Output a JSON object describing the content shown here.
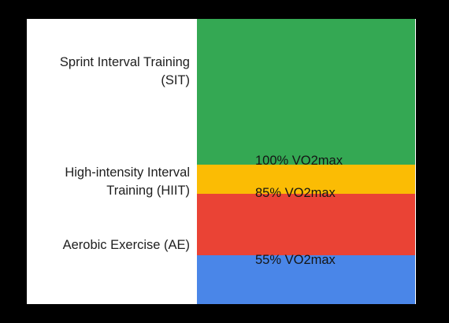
{
  "chart_data": {
    "type": "area",
    "title": "",
    "xlabel": "",
    "ylabel": "",
    "ylim": [
      0,
      125
    ],
    "zones": [
      {
        "name": "Aerobic Exercise (AE)",
        "from": 0,
        "to": 55,
        "color": "#4a86e8"
      },
      {
        "name": "High-intensity Interval Training (HIIT)",
        "from": 55,
        "to": 100,
        "color_lower": "#ea4335",
        "color_upper": "#fbbc04"
      },
      {
        "name": "Sprint Interval Training (SIT)",
        "from": 100,
        "to": 125,
        "color": "#34a853"
      }
    ],
    "thresholds": [
      {
        "label": "100% VO2max",
        "value": 100
      },
      {
        "label": "85% VO2max",
        "value": 85
      },
      {
        "label": "55% VO2max",
        "value": 55
      }
    ]
  },
  "labels": {
    "sit": "Sprint Interval Training\n(SIT)",
    "hiit": "High-intensity Interval\nTraining (HIIT)",
    "ae": "Aerobic Exercise (AE)"
  },
  "colors": {
    "green": "#34a853",
    "yellow": "#fbbc04",
    "red": "#ea4335",
    "blue": "#4a86e8"
  }
}
